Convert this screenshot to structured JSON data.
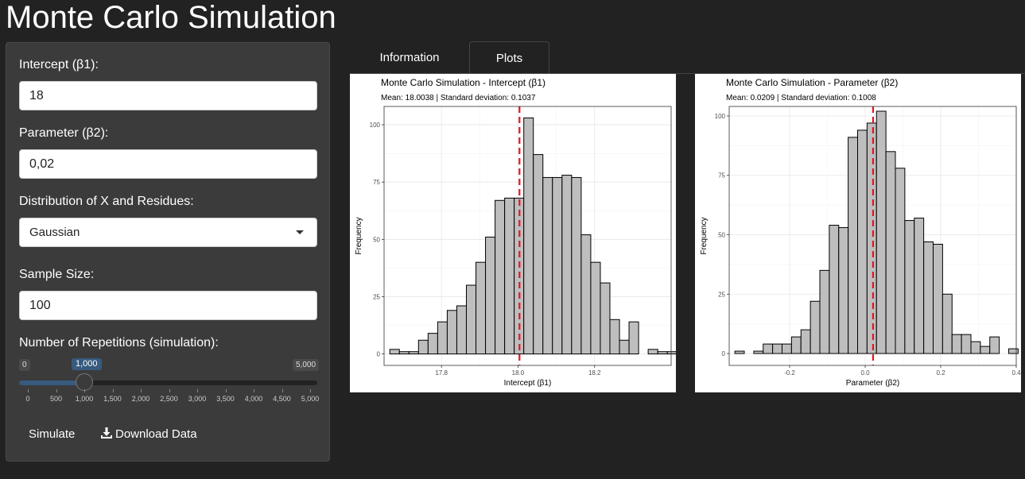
{
  "app": {
    "title": "Monte Carlo Simulation"
  },
  "sidebar": {
    "intercept": {
      "label": "Intercept (β1):",
      "value": "18"
    },
    "parameter": {
      "label": "Parameter (β2):",
      "value": "0,02"
    },
    "distribution": {
      "label": "Distribution of X and Residues:",
      "selected": "Gaussian"
    },
    "sample_size": {
      "label": "Sample Size:",
      "value": "100"
    },
    "repetitions": {
      "label": "Number of Repetitions (simulation):",
      "min_label": "0",
      "max_label": "5,000",
      "value_label": "1,000",
      "value": 1000,
      "min": 0,
      "max": 5000,
      "ticks": [
        "0",
        "500",
        "1,000",
        "1,500",
        "2,000",
        "2,500",
        "3,000",
        "3,500",
        "4,000",
        "4,500",
        "5,000"
      ]
    },
    "simulate_label": "Simulate",
    "download_label": "Download Data",
    "download_icon": "download-icon"
  },
  "tabs": [
    {
      "label": "Information",
      "active": false
    },
    {
      "label": "Plots",
      "active": true
    }
  ],
  "chart_data": [
    {
      "type": "bar",
      "title": "Monte Carlo Simulation - Intercept (β1)",
      "subtitle": "Mean: 18.0038 | Standard deviation: 0.1037",
      "xlabel": "Intercept (β1)",
      "ylabel": "Frequency",
      "xlim": [
        17.65,
        18.4
      ],
      "ylim": [
        -5,
        108
      ],
      "xticks": [
        {
          "value": 17.8,
          "label": "17.8"
        },
        {
          "value": 18.0,
          "label": "18.0"
        },
        {
          "value": 18.2,
          "label": "18.2"
        }
      ],
      "yticks": [
        {
          "value": 0,
          "label": "0"
        },
        {
          "value": 25,
          "label": "25"
        },
        {
          "value": 50,
          "label": "50"
        },
        {
          "value": 75,
          "label": "75"
        },
        {
          "value": 100,
          "label": "100"
        }
      ],
      "bin_start": 17.665,
      "bin_width": 0.025,
      "values": [
        2,
        1,
        1,
        6,
        9,
        14,
        19,
        21,
        30,
        40,
        51,
        67,
        68,
        68,
        103,
        87,
        77,
        77,
        78,
        77,
        52,
        40,
        31,
        15,
        6,
        14,
        0,
        2,
        1,
        1
      ],
      "mean_line": 18.0038,
      "bar_fill": "#bebebe",
      "mean_color": "#e8141c",
      "grid": true
    },
    {
      "type": "bar",
      "title": "Monte Carlo Simulation - Parameter (β2)",
      "subtitle": "Mean: 0.0209 | Standard deviation: 0.1008",
      "xlabel": "Parameter (β2)",
      "ylabel": "Frequency",
      "xlim": [
        -0.36,
        0.4
      ],
      "ylim": [
        -5,
        104
      ],
      "xticks": [
        {
          "value": -0.2,
          "label": "-0.2"
        },
        {
          "value": 0.0,
          "label": "0.0"
        },
        {
          "value": 0.2,
          "label": "0.2"
        },
        {
          "value": 0.4,
          "label": "0.4"
        }
      ],
      "yticks": [
        {
          "value": 0,
          "label": "0"
        },
        {
          "value": 25,
          "label": "25"
        },
        {
          "value": 50,
          "label": "50"
        },
        {
          "value": 75,
          "label": "75"
        },
        {
          "value": 100,
          "label": "100"
        }
      ],
      "bin_start": -0.345,
      "bin_width": 0.025,
      "values": [
        1,
        0,
        1,
        4,
        4,
        4,
        7,
        10,
        22,
        35,
        54,
        53,
        91,
        94,
        97,
        102,
        85,
        78,
        56,
        57,
        47,
        46,
        25,
        8,
        8,
        5,
        3,
        7,
        0,
        2
      ],
      "mean_line": 0.0209,
      "bar_fill": "#bebebe",
      "mean_color": "#e8141c",
      "grid": true
    }
  ]
}
